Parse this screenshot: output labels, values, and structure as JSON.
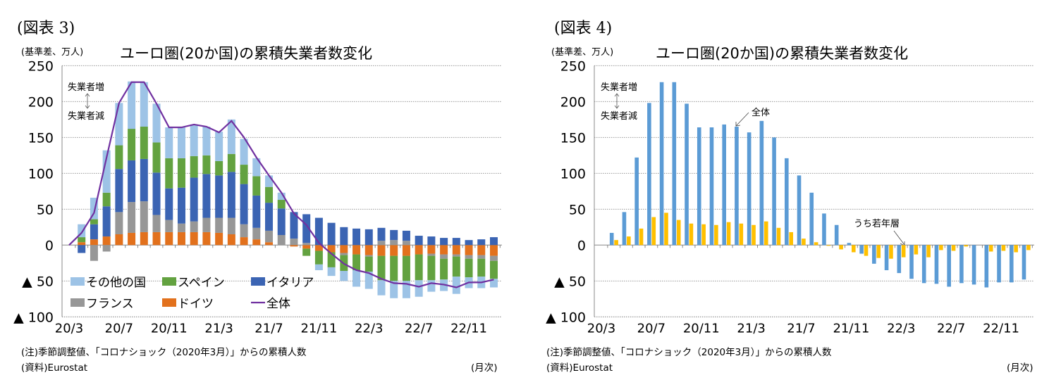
{
  "charts": [
    {
      "figure_label": "(図表 3)",
      "unit_label": "(基準差、万人)",
      "note": "(注)季節調整値、「コロナショック（2020年3月）」からの累積人数",
      "source": "(資料)Eurostat",
      "frequency": "(月次)"
    },
    {
      "figure_label": "(図表 4)",
      "unit_label": "(基準差、万人)",
      "note": "(注)季節調整値、「コロナショック（2020年3月）」からの累積人数",
      "source": "(資料)Eurostat",
      "frequency": "(月次)"
    }
  ],
  "chart_data": [
    {
      "type": "bar",
      "stacked": true,
      "title": "ユーロ圏(20か国)の累積失業者数変化",
      "ylabel": "(基準差、万人)",
      "ylim": [
        -100,
        250
      ],
      "yticks": [
        250,
        200,
        150,
        100,
        50,
        0,
        -50,
        -100
      ],
      "ytick_labels": [
        "250",
        "200",
        "150",
        "100",
        "50",
        "0",
        "▲ 50",
        "▲ 100"
      ],
      "grid": true,
      "legend": "bottom-left",
      "xtick_labels": [
        "20/3",
        "20/7",
        "20/11",
        "21/3",
        "21/7",
        "21/11",
        "22/3",
        "22/7",
        "22/11"
      ],
      "categories": [
        "20/3",
        "20/4",
        "20/5",
        "20/6",
        "20/7",
        "20/8",
        "20/9",
        "20/10",
        "20/11",
        "20/12",
        "21/1",
        "21/2",
        "21/3",
        "21/4",
        "21/5",
        "21/6",
        "21/7",
        "21/8",
        "21/9",
        "21/10",
        "21/11",
        "21/12",
        "22/1",
        "22/2",
        "22/3",
        "22/4",
        "22/5",
        "22/6",
        "22/7",
        "22/8",
        "22/9",
        "22/10",
        "22/11",
        "22/12",
        "23/1"
      ],
      "series": [
        {
          "name": "ドイツ",
          "kind": "bar",
          "color": "#E2711D",
          "values": [
            0,
            4,
            8,
            12,
            15,
            17,
            18,
            18,
            18,
            18,
            18,
            18,
            17,
            15,
            11,
            8,
            4,
            0,
            -2,
            -5,
            -8,
            -10,
            -11,
            -13,
            -14,
            -15,
            -15,
            -15,
            -13,
            -12,
            -13,
            -13,
            -14,
            -14,
            -15
          ]
        },
        {
          "name": "フランス",
          "kind": "bar",
          "color": "#979797",
          "values": [
            0,
            0,
            -22,
            -9,
            31,
            43,
            43,
            24,
            17,
            12,
            15,
            20,
            21,
            23,
            18,
            16,
            16,
            14,
            9,
            3,
            0,
            0,
            -3,
            0,
            -2,
            6,
            7,
            6,
            0,
            -3,
            -6,
            -3,
            -5,
            -5,
            -7
          ]
        },
        {
          "name": "イタリア",
          "kind": "bar",
          "color": "#3B64B3",
          "values": [
            0,
            -11,
            21,
            42,
            60,
            58,
            59,
            59,
            44,
            50,
            61,
            61,
            59,
            64,
            56,
            45,
            39,
            37,
            37,
            40,
            38,
            31,
            25,
            23,
            22,
            18,
            14,
            14,
            13,
            12,
            10,
            10,
            7,
            8,
            11
          ]
        },
        {
          "name": "スペイン",
          "kind": "bar",
          "color": "#63A240",
          "values": [
            0,
            7,
            7,
            19,
            33,
            44,
            45,
            42,
            42,
            41,
            30,
            26,
            20,
            25,
            27,
            27,
            22,
            12,
            0,
            -10,
            -19,
            -21,
            -22,
            -22,
            -21,
            -34,
            -35,
            -35,
            -36,
            -34,
            -29,
            -28,
            -26,
            -25,
            -25
          ]
        },
        {
          "name": "その他の国",
          "kind": "bar",
          "color": "#9DC3E6",
          "values": [
            0,
            18,
            30,
            59,
            59,
            66,
            62,
            54,
            43,
            43,
            44,
            40,
            41,
            48,
            36,
            25,
            16,
            10,
            0,
            0,
            -8,
            -12,
            -14,
            -23,
            -24,
            -21,
            -24,
            -24,
            -23,
            -16,
            -16,
            -24,
            -15,
            -16,
            -12
          ]
        },
        {
          "name": "全体",
          "kind": "line",
          "color": "#7030A0",
          "values": [
            0,
            17,
            45,
            122,
            198,
            227,
            227,
            197,
            164,
            164,
            168,
            165,
            157,
            173,
            150,
            122,
            97,
            73,
            44,
            28,
            3,
            -12,
            -26,
            -35,
            -39,
            -47,
            -53,
            -54,
            -58,
            -53,
            -55,
            -59,
            -52,
            -52,
            -48
          ]
        }
      ],
      "annotations": [
        "失業者増",
        "失業者減"
      ]
    },
    {
      "type": "bar",
      "stacked": false,
      "title": "ユーロ圏(20か国)の累積失業者数変化",
      "ylabel": "(基準差、万人)",
      "ylim": [
        -100,
        250
      ],
      "yticks": [
        250,
        200,
        150,
        100,
        50,
        0,
        -50,
        -100
      ],
      "ytick_labels": [
        "250",
        "200",
        "150",
        "100",
        "50",
        "0",
        "▲ 50",
        "▲ 100"
      ],
      "grid": true,
      "xtick_labels": [
        "20/3",
        "20/7",
        "20/11",
        "21/3",
        "21/7",
        "21/11",
        "22/3",
        "22/7",
        "22/11"
      ],
      "categories": [
        "20/3",
        "20/4",
        "20/5",
        "20/6",
        "20/7",
        "20/8",
        "20/9",
        "20/10",
        "20/11",
        "20/12",
        "21/1",
        "21/2",
        "21/3",
        "21/4",
        "21/5",
        "21/6",
        "21/7",
        "21/8",
        "21/9",
        "21/10",
        "21/11",
        "21/12",
        "22/1",
        "22/2",
        "22/3",
        "22/4",
        "22/5",
        "22/6",
        "22/7",
        "22/8",
        "22/9",
        "22/10",
        "22/11",
        "22/12",
        "23/1"
      ],
      "series": [
        {
          "name": "全体",
          "color": "#5B9BD5",
          "values": [
            0,
            17,
            46,
            122,
            198,
            227,
            227,
            197,
            164,
            164,
            168,
            165,
            157,
            173,
            150,
            121,
            97,
            73,
            44,
            28,
            3,
            -12,
            -26,
            -35,
            -39,
            -47,
            -53,
            -54,
            -58,
            -53,
            -55,
            -59,
            -52,
            -52,
            -48
          ]
        },
        {
          "name": "うち若年層",
          "color": "#FFC000",
          "values": [
            0,
            7,
            12,
            23,
            39,
            45,
            35,
            30,
            29,
            28,
            32,
            30,
            28,
            33,
            24,
            18,
            9,
            4,
            -1,
            -6,
            -10,
            -15,
            -18,
            -19,
            -17,
            -13,
            -17,
            -7,
            -8,
            -2,
            0,
            -9,
            -8,
            -10,
            -7
          ]
        }
      ],
      "annotations": [
        "失業者増",
        "失業者減",
        "全体",
        "うち若年層"
      ]
    }
  ]
}
